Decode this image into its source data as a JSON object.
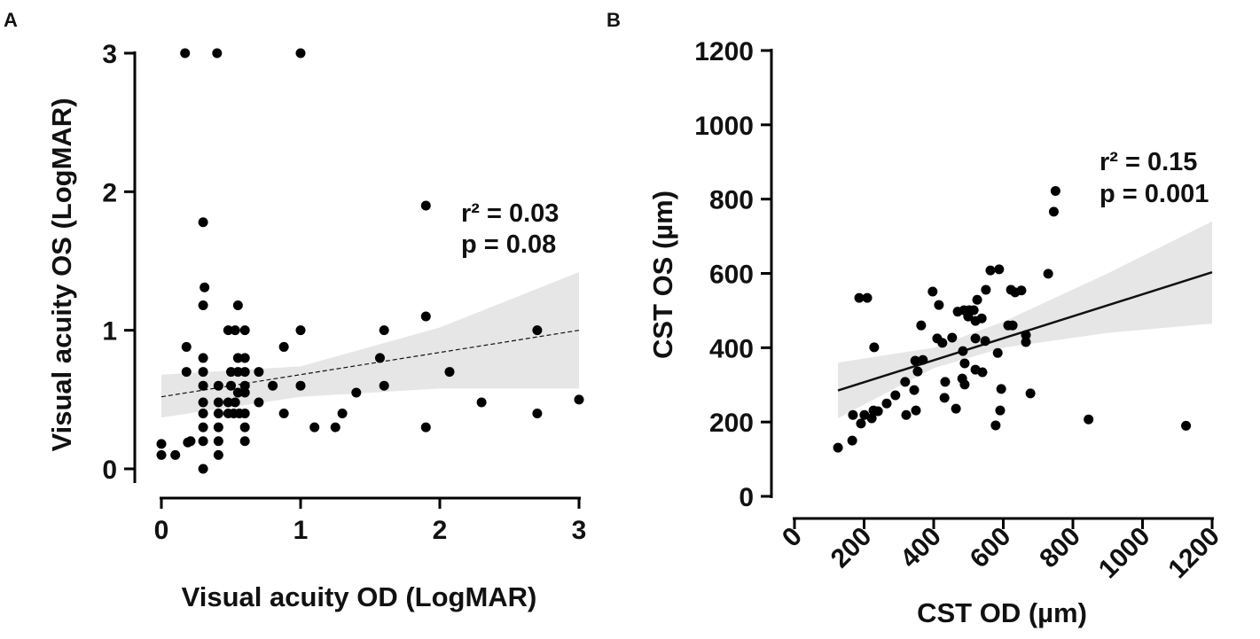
{
  "chart_data": [
    {
      "panel": "A",
      "type": "scatter",
      "xlabel": "Visual acuity OD (LogMAR)",
      "ylabel": "Visual acuity OS (LogMAR)",
      "xlim": [
        0,
        3
      ],
      "ylim": [
        0,
        3
      ],
      "xticks": [
        "0",
        "1",
        "2",
        "3"
      ],
      "yticks": [
        "0",
        "1",
        "2",
        "3"
      ],
      "annotation": {
        "r2": "r² = 0.03",
        "p": "p = 0.08"
      },
      "fit": {
        "x": [
          0,
          3
        ],
        "y": [
          0.52,
          1.0
        ],
        "style": "dashed"
      },
      "ci_band": {
        "x": [
          0,
          1,
          2,
          3
        ],
        "lower": [
          0.37,
          0.52,
          0.58,
          0.58
        ],
        "upper": [
          0.68,
          0.74,
          1.02,
          1.42
        ]
      },
      "points": [
        [
          0.17,
          3
        ],
        [
          0.4,
          3
        ],
        [
          1.0,
          3
        ],
        [
          0.3,
          1.78
        ],
        [
          1.9,
          1.9
        ],
        [
          0.31,
          1.31
        ],
        [
          0.3,
          1.18
        ],
        [
          0.55,
          1.18
        ],
        [
          0.48,
          1.0
        ],
        [
          0.53,
          1.0
        ],
        [
          0.6,
          1.0
        ],
        [
          1.0,
          1.0
        ],
        [
          0.18,
          0.88
        ],
        [
          0.88,
          0.88
        ],
        [
          0.3,
          0.8
        ],
        [
          0.55,
          0.8
        ],
        [
          0.6,
          0.8
        ],
        [
          0.18,
          0.7
        ],
        [
          0.3,
          0.7
        ],
        [
          0.5,
          0.7
        ],
        [
          0.55,
          0.7
        ],
        [
          0.6,
          0.7
        ],
        [
          0.7,
          0.7
        ],
        [
          0.3,
          0.6
        ],
        [
          0.41,
          0.6
        ],
        [
          0.5,
          0.6
        ],
        [
          0.6,
          0.6
        ],
        [
          0.8,
          0.6
        ],
        [
          1.0,
          0.6
        ],
        [
          0.55,
          0.55
        ],
        [
          0.6,
          0.55
        ],
        [
          0.3,
          0.48
        ],
        [
          0.41,
          0.48
        ],
        [
          0.48,
          0.48
        ],
        [
          0.53,
          0.48
        ],
        [
          0.7,
          0.48
        ],
        [
          0.3,
          0.4
        ],
        [
          0.41,
          0.4
        ],
        [
          0.48,
          0.4
        ],
        [
          0.52,
          0.4
        ],
        [
          0.56,
          0.4
        ],
        [
          0.6,
          0.4
        ],
        [
          0.88,
          0.4
        ],
        [
          0.3,
          0.3
        ],
        [
          0.41,
          0.3
        ],
        [
          0.6,
          0.3
        ],
        [
          0.19,
          0.19
        ],
        [
          0.21,
          0.2
        ],
        [
          0.3,
          0.2
        ],
        [
          0.41,
          0.2
        ],
        [
          0.6,
          0.2
        ],
        [
          0,
          0.18
        ],
        [
          0,
          0.1
        ],
        [
          0.1,
          0.1
        ],
        [
          0.41,
          0.1
        ],
        [
          0.3,
          0.0
        ],
        [
          1.9,
          1.1
        ],
        [
          1.6,
          1.0
        ],
        [
          1.57,
          0.8
        ],
        [
          1.6,
          0.6
        ],
        [
          2.07,
          0.7
        ],
        [
          2.7,
          1.0
        ],
        [
          2.7,
          0.4
        ],
        [
          2.3,
          0.48
        ],
        [
          3.0,
          0.5
        ],
        [
          1.9,
          0.3
        ],
        [
          1.1,
          0.3
        ],
        [
          1.25,
          0.3
        ],
        [
          1.3,
          0.4
        ],
        [
          1.4,
          0.55
        ]
      ]
    },
    {
      "panel": "B",
      "type": "scatter",
      "xlabel": "CST OD (µm)",
      "ylabel": "CST OS (µm)",
      "xlim": [
        0,
        1200
      ],
      "ylim": [
        0,
        1200
      ],
      "xticks": [
        "0",
        "200",
        "400",
        "600",
        "800",
        "1000",
        "1200"
      ],
      "yticks": [
        "0",
        "200",
        "400",
        "600",
        "800",
        "1000",
        "1200"
      ],
      "annotation": {
        "r2": "r² = 0.15",
        "p": "p = 0.001"
      },
      "fit": {
        "x": [
          125,
          1200
        ],
        "y": [
          285,
          603
        ],
        "style": "solid"
      },
      "ci_band": {
        "x": [
          125,
          400,
          600,
          900,
          1200
        ],
        "lower": [
          210,
          345,
          400,
          440,
          465
        ],
        "upper": [
          360,
          400,
          470,
          600,
          740
        ]
      },
      "points": [
        [
          125,
          131
        ],
        [
          166,
          150
        ],
        [
          168,
          219
        ],
        [
          191,
          196
        ],
        [
          201,
          219
        ],
        [
          222,
          210
        ],
        [
          227,
          231
        ],
        [
          240,
          229
        ],
        [
          265,
          250
        ],
        [
          290,
          272
        ],
        [
          318,
          308
        ],
        [
          321,
          219
        ],
        [
          344,
          286
        ],
        [
          349,
          231
        ],
        [
          347,
          365
        ],
        [
          369,
          367
        ],
        [
          354,
          336
        ],
        [
          229,
          401
        ],
        [
          186,
          534
        ],
        [
          209,
          534
        ],
        [
          364,
          460
        ],
        [
          397,
          551
        ],
        [
          415,
          515
        ],
        [
          410,
          425
        ],
        [
          425,
          413
        ],
        [
          453,
          427
        ],
        [
          433,
          308
        ],
        [
          431,
          265
        ],
        [
          464,
          236
        ],
        [
          484,
          391
        ],
        [
          489,
          358
        ],
        [
          482,
          317
        ],
        [
          489,
          301
        ],
        [
          469,
          497
        ],
        [
          487,
          501
        ],
        [
          502,
          501
        ],
        [
          515,
          501
        ],
        [
          499,
          484
        ],
        [
          520,
          472
        ],
        [
          538,
          479
        ],
        [
          525,
          529
        ],
        [
          550,
          556
        ],
        [
          563,
          608
        ],
        [
          588,
          611
        ],
        [
          520,
          425
        ],
        [
          548,
          418
        ],
        [
          520,
          341
        ],
        [
          540,
          334
        ],
        [
          584,
          386
        ],
        [
          594,
          289
        ],
        [
          591,
          231
        ],
        [
          578,
          191
        ],
        [
          678,
          277
        ],
        [
          622,
          556
        ],
        [
          634,
          549
        ],
        [
          652,
          554
        ],
        [
          614,
          460
        ],
        [
          627,
          460
        ],
        [
          665,
          434
        ],
        [
          665,
          415
        ],
        [
          729,
          599
        ],
        [
          750,
          822
        ],
        [
          745,
          766
        ],
        [
          845,
          207
        ],
        [
          1125,
          190
        ]
      ]
    }
  ]
}
